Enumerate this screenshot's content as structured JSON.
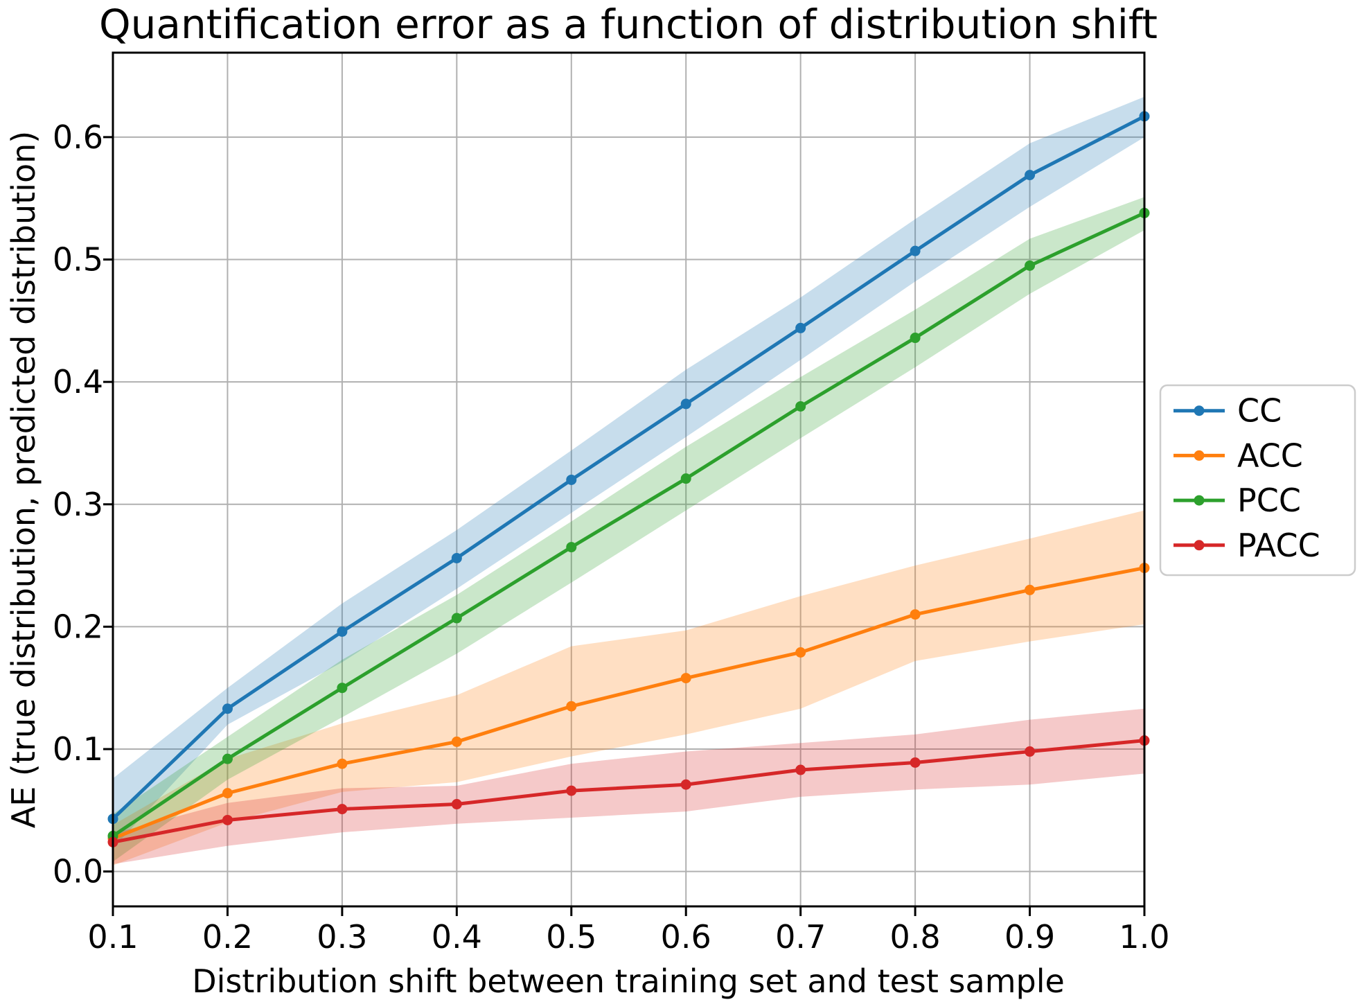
{
  "title": "Quantification error as a function of distribution shift",
  "chart_data": {
    "type": "line",
    "title": "Quantification error as a function of distribution shift",
    "xlabel": "Distribution shift between training set and test sample",
    "ylabel": "AE (true distribution, predicted distribution)",
    "x": [
      0.1,
      0.2,
      0.3,
      0.4,
      0.5,
      0.6,
      0.7,
      0.8,
      0.9,
      1.0
    ],
    "x_tick_labels": [
      "0.1",
      "0.2",
      "0.3",
      "0.4",
      "0.5",
      "0.6",
      "0.7",
      "0.8",
      "0.9",
      "1.0"
    ],
    "y_ticks": [
      0.0,
      0.1,
      0.2,
      0.3,
      0.4,
      0.5,
      0.6
    ],
    "y_tick_labels": [
      "0.0",
      "0.1",
      "0.2",
      "0.3",
      "0.4",
      "0.5",
      "0.6"
    ],
    "xlim": [
      0.1,
      1.0
    ],
    "ylim": [
      -0.0285,
      0.669
    ],
    "grid": true,
    "legend_position": "outside-right",
    "series": [
      {
        "name": "CC",
        "color": "#1f77b4",
        "values": [
          0.043,
          0.133,
          0.196,
          0.256,
          0.32,
          0.382,
          0.444,
          0.507,
          0.569,
          0.617
        ],
        "band_lower": [
          0.019,
          0.12,
          0.171,
          0.231,
          0.293,
          0.355,
          0.418,
          0.482,
          0.543,
          0.6
        ],
        "band_upper": [
          0.076,
          0.15,
          0.219,
          0.279,
          0.344,
          0.41,
          0.469,
          0.533,
          0.595,
          0.633
        ]
      },
      {
        "name": "ACC",
        "color": "#ff7f0e",
        "values": [
          0.027,
          0.064,
          0.088,
          0.106,
          0.135,
          0.158,
          0.179,
          0.21,
          0.23,
          0.248
        ],
        "band_lower": [
          0.005,
          0.04,
          0.065,
          0.073,
          0.094,
          0.112,
          0.133,
          0.172,
          0.188,
          0.202
        ],
        "band_upper": [
          0.038,
          0.092,
          0.121,
          0.144,
          0.184,
          0.197,
          0.225,
          0.25,
          0.272,
          0.295
        ]
      },
      {
        "name": "PCC",
        "color": "#2ca02c",
        "values": [
          0.029,
          0.092,
          0.15,
          0.207,
          0.265,
          0.321,
          0.38,
          0.436,
          0.495,
          0.538
        ],
        "band_lower": [
          0.008,
          0.075,
          0.126,
          0.178,
          0.236,
          0.295,
          0.354,
          0.412,
          0.472,
          0.524
        ],
        "band_upper": [
          0.047,
          0.11,
          0.173,
          0.226,
          0.286,
          0.347,
          0.404,
          0.459,
          0.517,
          0.551
        ]
      },
      {
        "name": "PACC",
        "color": "#d62728",
        "values": [
          0.024,
          0.042,
          0.051,
          0.055,
          0.066,
          0.071,
          0.083,
          0.089,
          0.098,
          0.107
        ],
        "band_lower": [
          0.006,
          0.021,
          0.032,
          0.039,
          0.044,
          0.049,
          0.061,
          0.067,
          0.071,
          0.08
        ],
        "band_upper": [
          0.031,
          0.056,
          0.068,
          0.07,
          0.088,
          0.098,
          0.105,
          0.112,
          0.124,
          0.133
        ]
      }
    ]
  },
  "styles": {
    "background": "#ffffff",
    "grid_color": "#b0b0b0",
    "spine_color": "#000000",
    "tick_color": "#000000",
    "legend_border_color": "#cccccc",
    "legend_background": "#ffffff",
    "band_opacity": 0.25
  }
}
